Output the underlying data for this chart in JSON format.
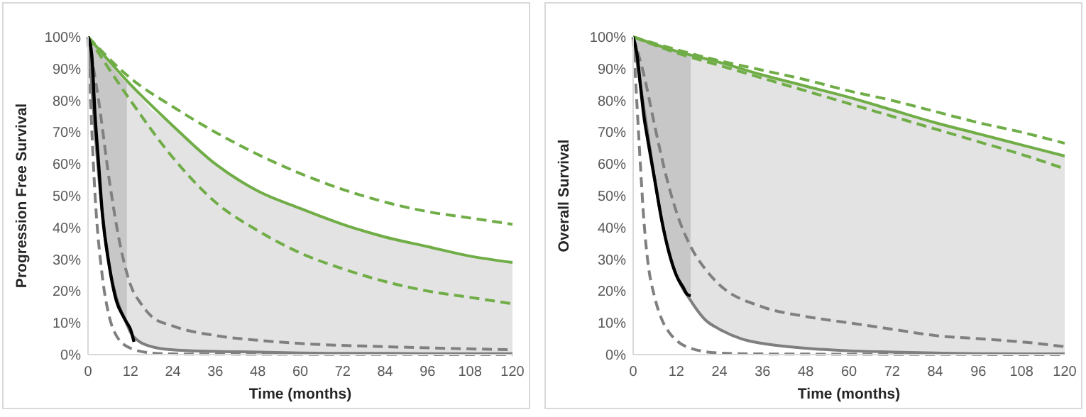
{
  "chart_data": [
    {
      "type": "line",
      "xlabel": "Time (months)",
      "ylabel": "Progression Free Survival",
      "xlim": [
        0,
        120
      ],
      "xticks": [
        0,
        12,
        24,
        36,
        48,
        60,
        72,
        84,
        96,
        108,
        120
      ],
      "ylim": [
        0,
        100
      ],
      "yticks": [
        {
          "value": 0,
          "label": "0%"
        },
        {
          "value": 10,
          "label": "10%"
        },
        {
          "value": 20,
          "label": "20%"
        },
        {
          "value": 30,
          "label": "30%"
        },
        {
          "value": 40,
          "label": "40%"
        },
        {
          "value": 50,
          "label": "50%"
        },
        {
          "value": 60,
          "label": "60%"
        },
        {
          "value": 70,
          "label": "70%"
        },
        {
          "value": 80,
          "label": "80%"
        },
        {
          "value": 90,
          "label": "90%"
        },
        {
          "value": 100,
          "label": "100%"
        }
      ],
      "grid": false,
      "series": [
        {
          "color": "#808080",
          "line_style": "dashed",
          "x": [
            0,
            3,
            6,
            9,
            12,
            15,
            18,
            24,
            36,
            48,
            60,
            84,
            120
          ],
          "values": [
            100,
            80,
            55,
            35,
            22,
            16,
            12,
            9,
            6,
            4.5,
            3.5,
            2.5,
            1.5
          ]
        },
        {
          "color": "#808080",
          "line_style": "dashed",
          "x": [
            0,
            2,
            4,
            6,
            8,
            12,
            18,
            24,
            120
          ],
          "values": [
            100,
            50,
            25,
            12,
            6,
            2,
            0.5,
            0.2,
            0
          ]
        },
        {
          "color": "#7f7f7f",
          "line_style": "solid",
          "x": [
            0,
            2,
            4,
            6,
            8,
            10,
            11,
            12,
            14,
            18,
            24,
            36,
            48,
            60,
            72,
            84,
            96,
            108,
            120
          ],
          "values": [
            100,
            70,
            45,
            28,
            18,
            12,
            9.5,
            7,
            4.5,
            2.5,
            1.5,
            1,
            0.8,
            0.5,
            0.4,
            0.4,
            0.3,
            0.3,
            0.3
          ],
          "lower": [
            null,
            null,
            null,
            null,
            null,
            null,
            9.5,
            7,
            4.5,
            2.5,
            1.5,
            1,
            0.8,
            0.5,
            0.4,
            0.4,
            0.3,
            0.3,
            0.3
          ],
          "upper": [
            null,
            null,
            null,
            null,
            null,
            null,
            85.5,
            85,
            82,
            77,
            72,
            60,
            51.5,
            46,
            41,
            37,
            34,
            31,
            29
          ]
        },
        {
          "color": "#70ad47",
          "line_style": "dashed",
          "x": [
            0,
            12,
            24,
            36,
            48,
            60,
            72,
            84,
            96,
            108,
            120
          ],
          "values": [
            100,
            87,
            78,
            70,
            63,
            57,
            52,
            48,
            45,
            43,
            41
          ]
        },
        {
          "color": "#70ad47",
          "line_style": "dashed",
          "x": [
            0,
            12,
            24,
            36,
            48,
            60,
            72,
            84,
            96,
            108,
            120
          ],
          "values": [
            100,
            80,
            62,
            48,
            39,
            32,
            27,
            23,
            20,
            18,
            16
          ]
        },
        {
          "color": "#70ad47",
          "line_style": "solid",
          "x": [
            0,
            12,
            24,
            36,
            48,
            60,
            72,
            84,
            96,
            108,
            120
          ],
          "values": [
            100,
            85,
            72,
            60,
            51.5,
            46,
            41,
            37,
            34,
            31,
            29
          ]
        },
        {
          "color": "#000000",
          "line_style": "solid",
          "x": [
            0,
            1,
            2,
            3,
            4,
            6,
            8,
            10,
            11,
            12,
            13
          ],
          "values": [
            100,
            95,
            75,
            60,
            45,
            28,
            17,
            12,
            10,
            8,
            4
          ],
          "lower": [
            100,
            95,
            75,
            60,
            45,
            28,
            17,
            12,
            10,
            null,
            null
          ],
          "upper": [
            100,
            99,
            97.5,
            96,
            94.5,
            91.5,
            89,
            86.5,
            85.5,
            null,
            null
          ]
        }
      ]
    },
    {
      "type": "line",
      "xlabel": "Time (months)",
      "ylabel": "Overall Survival",
      "xlim": [
        0,
        120
      ],
      "xticks": [
        0,
        12,
        24,
        36,
        48,
        60,
        72,
        84,
        96,
        108,
        120
      ],
      "ylim": [
        0,
        100
      ],
      "yticks": [
        {
          "value": 0,
          "label": "0%"
        },
        {
          "value": 10,
          "label": "10%"
        },
        {
          "value": 20,
          "label": "20%"
        },
        {
          "value": 30,
          "label": "30%"
        },
        {
          "value": 40,
          "label": "40%"
        },
        {
          "value": 50,
          "label": "50%"
        },
        {
          "value": 60,
          "label": "60%"
        },
        {
          "value": 70,
          "label": "70%"
        },
        {
          "value": 80,
          "label": "80%"
        },
        {
          "value": 90,
          "label": "90%"
        },
        {
          "value": 100,
          "label": "100%"
        }
      ],
      "grid": false,
      "series": [
        {
          "color": "#808080",
          "line_style": "dashed",
          "x": [
            0,
            3,
            6,
            9,
            12,
            16,
            20,
            24,
            36,
            48,
            60,
            72,
            84,
            96,
            108,
            120
          ],
          "values": [
            100,
            88,
            72,
            57,
            45,
            34,
            27,
            22,
            15,
            12,
            10,
            8,
            6,
            5,
            4,
            2.5
          ]
        },
        {
          "color": "#808080",
          "line_style": "dashed",
          "x": [
            0,
            1,
            2,
            3,
            4,
            6,
            8,
            10,
            12,
            16,
            24,
            36,
            120
          ],
          "values": [
            100,
            80,
            60,
            42,
            30,
            18,
            11,
            7,
            4.5,
            2,
            0.5,
            0.2,
            0
          ]
        },
        {
          "color": "#7f7f7f",
          "line_style": "solid",
          "x": [
            0,
            2,
            4,
            6,
            8,
            10,
            12,
            16,
            20,
            24,
            30,
            36,
            48,
            60,
            72,
            84,
            96,
            108,
            120
          ],
          "values": [
            100,
            85,
            70,
            55,
            42,
            32,
            25,
            17,
            11,
            8,
            5,
            3.5,
            2,
            1.2,
            0.8,
            0.5,
            0.3,
            0.2,
            0.2
          ],
          "lower": [
            null,
            null,
            null,
            null,
            null,
            null,
            null,
            17,
            11,
            8,
            5,
            3.5,
            2,
            1.2,
            0.8,
            0.5,
            0.3,
            0.2,
            0.2
          ],
          "upper": [
            null,
            null,
            null,
            null,
            null,
            null,
            null,
            94,
            93,
            92,
            90,
            88,
            84.5,
            81,
            77,
            73,
            69.5,
            66,
            62.5
          ]
        },
        {
          "color": "#70ad47",
          "line_style": "dashed",
          "x": [
            0,
            12,
            24,
            36,
            48,
            60,
            72,
            84,
            96,
            108,
            120
          ],
          "values": [
            100,
            96,
            92.5,
            89.5,
            86.5,
            83,
            80,
            76.5,
            73,
            70,
            66.5
          ]
        },
        {
          "color": "#70ad47",
          "line_style": "dashed",
          "x": [
            0,
            12,
            24,
            36,
            48,
            60,
            72,
            84,
            96,
            108,
            120
          ],
          "values": [
            100,
            95,
            91,
            87,
            83,
            79,
            75,
            71,
            67,
            63,
            58.5
          ]
        },
        {
          "color": "#70ad47",
          "line_style": "solid",
          "x": [
            0,
            12,
            24,
            36,
            48,
            60,
            72,
            84,
            96,
            108,
            120
          ],
          "values": [
            100,
            95.5,
            92,
            88,
            84.5,
            81,
            77,
            73,
            69.5,
            66,
            62.5
          ]
        },
        {
          "color": "#000000",
          "line_style": "solid",
          "x": [
            0,
            1,
            2,
            3,
            4,
            6,
            8,
            10,
            12,
            14,
            15,
            16
          ],
          "values": [
            100,
            95,
            85,
            75,
            68,
            55,
            42,
            32,
            25,
            21,
            19,
            18.5
          ],
          "lower": [
            100,
            95,
            85,
            75,
            68,
            55,
            42,
            32,
            25,
            21,
            19,
            18.5
          ],
          "upper": [
            100,
            99.6,
            99.3,
            99,
            98.5,
            97.8,
            97,
            96.3,
            95.5,
            94.8,
            94.4,
            94
          ]
        }
      ]
    }
  ]
}
